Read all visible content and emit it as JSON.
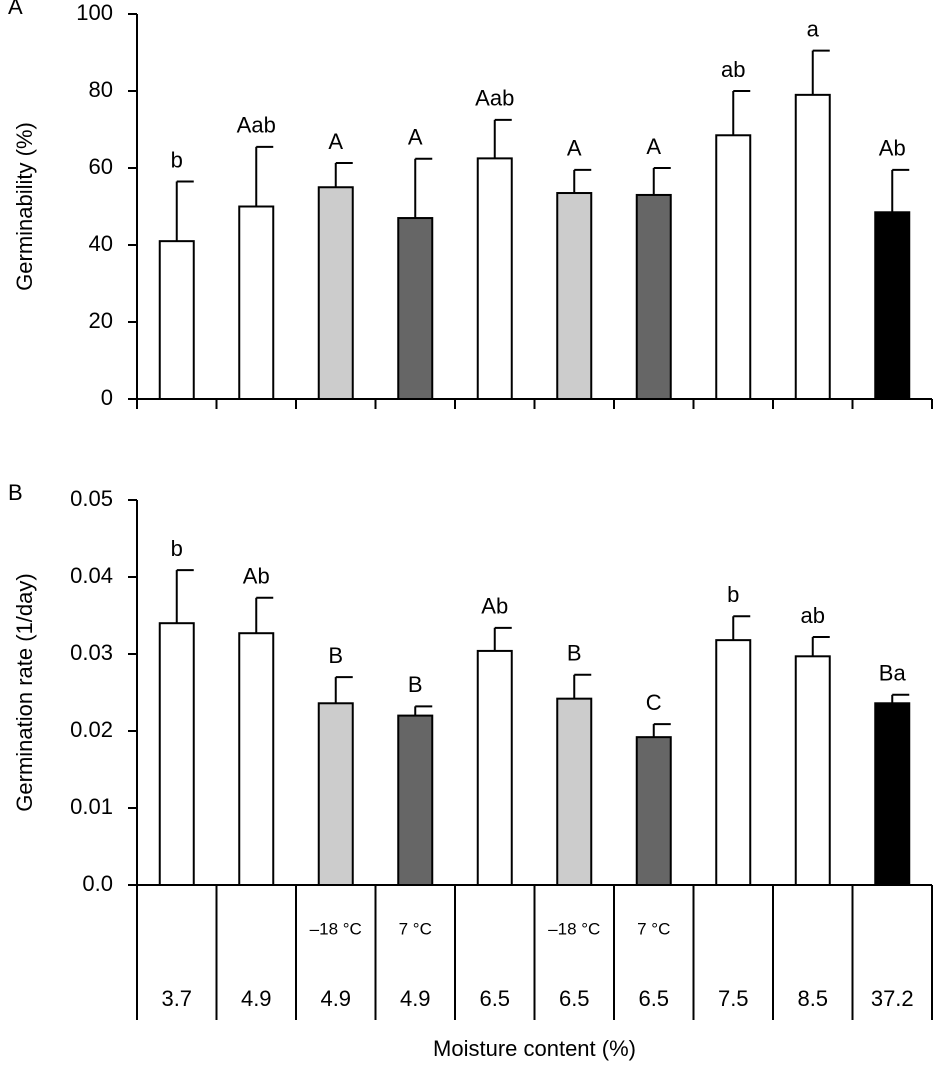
{
  "chart_data": [
    {
      "type": "bar",
      "panel_label": "A",
      "y_label": "Germinability (%)",
      "values": [
        41,
        50,
        55,
        47,
        62.5,
        53.5,
        53,
        68.5,
        79,
        48.5
      ],
      "errors": [
        15.5,
        15.5,
        6.3,
        15.4,
        10,
        6,
        7,
        11.5,
        11.5,
        11
      ],
      "letters": [
        "b",
        "Aab",
        "A",
        "A",
        "Aab",
        "A",
        "A",
        "ab",
        "a",
        "Ab"
      ],
      "colors": [
        "#ffffff",
        "#ffffff",
        "#cccccc",
        "#666666",
        "#ffffff",
        "#cccccc",
        "#666666",
        "#ffffff",
        "#ffffff",
        "#000000"
      ],
      "ylim": [
        0,
        100
      ],
      "yticks": [
        0,
        20,
        40,
        60,
        80,
        100
      ]
    },
    {
      "type": "bar",
      "panel_label": "B",
      "y_label": "Germination rate (1/day)",
      "x_label": "Moisture content (%)",
      "categories": [
        "3.7",
        "4.9",
        "4.9",
        "4.9",
        "6.5",
        "6.5",
        "6.5",
        "7.5",
        "8.5",
        "37.2"
      ],
      "storage": [
        null,
        null,
        "–18 °C",
        "7 °C",
        null,
        "–18 °C",
        "7 °C",
        null,
        null,
        null
      ],
      "values": [
        0.034,
        0.0327,
        0.0236,
        0.022,
        0.0304,
        0.0242,
        0.0192,
        0.0318,
        0.0297,
        0.0236
      ],
      "errors": [
        0.0069,
        0.0046,
        0.0034,
        0.0012,
        0.003,
        0.0031,
        0.0017,
        0.0031,
        0.0025,
        0.0011
      ],
      "letters": [
        "b",
        "Ab",
        "B",
        "B",
        "Ab",
        "B",
        "C",
        "b",
        "ab",
        "Ba"
      ],
      "colors": [
        "#ffffff",
        "#ffffff",
        "#cccccc",
        "#666666",
        "#ffffff",
        "#cccccc",
        "#666666",
        "#ffffff",
        "#ffffff",
        "#000000"
      ],
      "ylim": [
        0,
        0.05
      ],
      "yticks": [
        {
          "value": 0,
          "label": "0.0"
        },
        0.01,
        0.02,
        0.03,
        0.04,
        0.05
      ]
    }
  ]
}
